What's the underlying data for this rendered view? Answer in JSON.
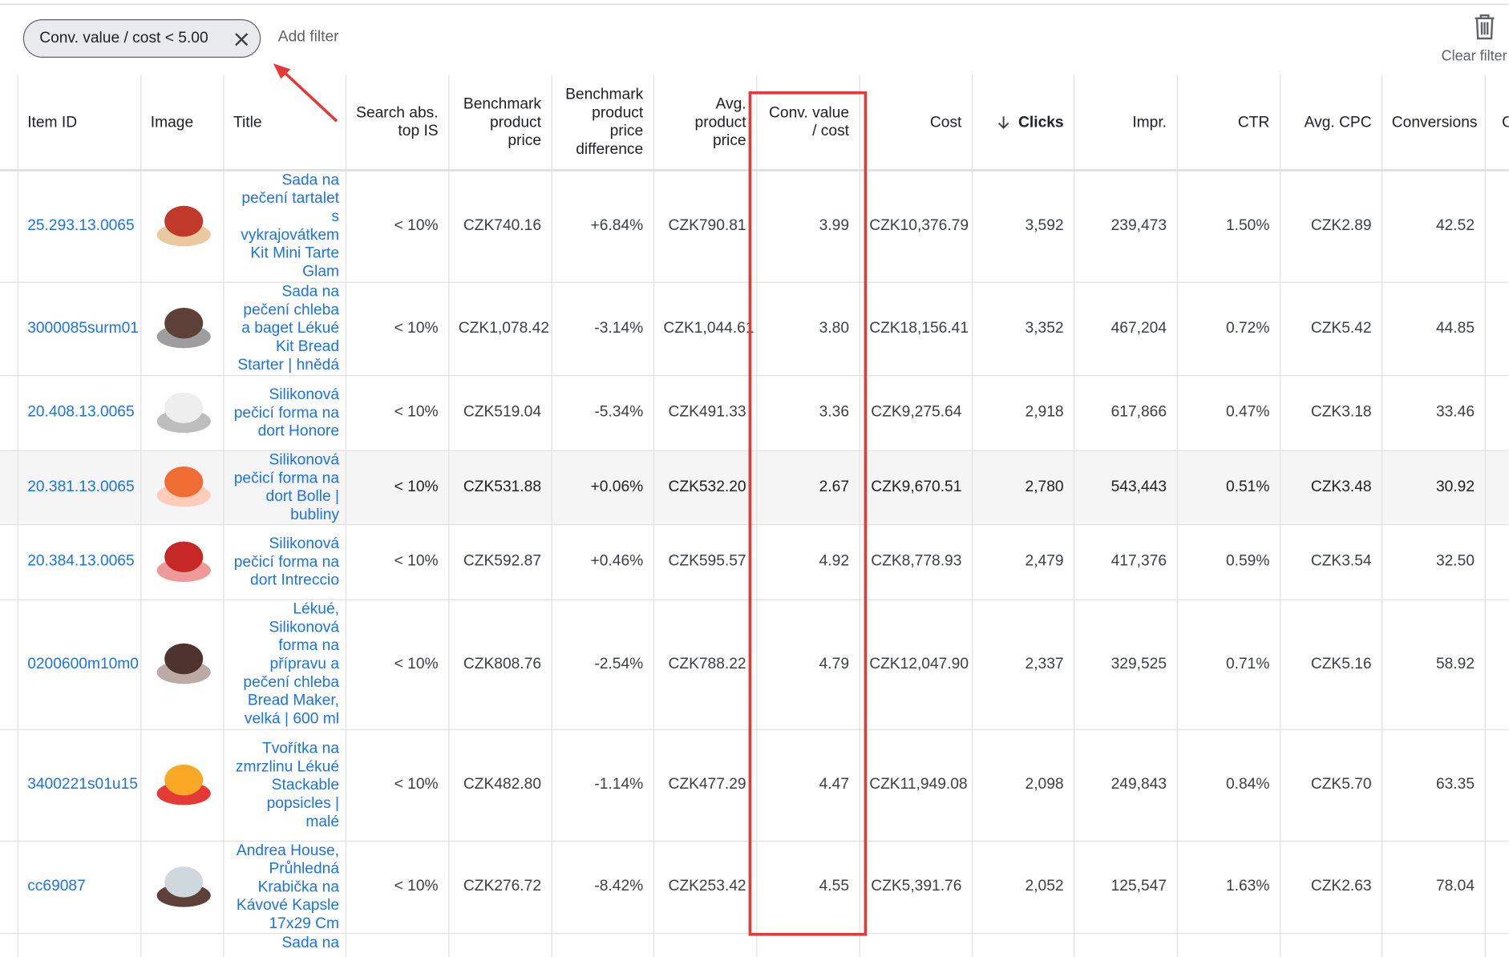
{
  "filter_bar": {
    "chip": "Conv. value / cost < 5.00",
    "add_filter": "Add filter",
    "clear_filter": "Clear filter"
  },
  "table": {
    "headers": [
      "Item ID",
      "Image",
      "Title",
      "Search abs. top IS",
      "Benchmark product price",
      "Benchmark product price difference",
      "Avg. product price",
      "Conv. value / cost",
      "Cost",
      "Clicks",
      "Impr.",
      "CTR",
      "Avg. CPC",
      "Conversions",
      "C"
    ],
    "rows": [
      [
        "25.293.13.0065",
        "Sada na pečení tartalet s vykrajovátkem Kit Mini Tarte Glam",
        "< 10%",
        "CZK740.16",
        "+6.84%",
        "CZK790.81",
        "3.99",
        "CZK10,376.79",
        "3,592",
        "239,473",
        "1.50%",
        "CZK2.89",
        "42.52"
      ],
      [
        "3000085surm01",
        "Sada na pečení chleba a baget Lékué Kit Bread Starter | hnědá",
        "< 10%",
        "CZK1,078.42",
        "-3.14%",
        "CZK1,044.61",
        "3.80",
        "CZK18,156.41",
        "3,352",
        "467,204",
        "0.72%",
        "CZK5.42",
        "44.85"
      ],
      [
        "20.408.13.0065",
        "Silikonová pečicí forma na dort Honore",
        "< 10%",
        "CZK519.04",
        "-5.34%",
        "CZK491.33",
        "3.36",
        "CZK9,275.64",
        "2,918",
        "617,866",
        "0.47%",
        "CZK3.18",
        "33.46"
      ],
      [
        "20.381.13.0065",
        "Silikonová pečicí forma na dort Bolle | bubliny",
        "< 10%",
        "CZK531.88",
        "+0.06%",
        "CZK532.20",
        "2.67",
        "CZK9,670.51",
        "2,780",
        "543,443",
        "0.51%",
        "CZK3.48",
        "30.92"
      ],
      [
        "20.384.13.0065",
        "Silikonová pečicí forma na dort Intreccio",
        "< 10%",
        "CZK592.87",
        "+0.46%",
        "CZK595.57",
        "4.92",
        "CZK8,778.93",
        "2,479",
        "417,376",
        "0.59%",
        "CZK3.54",
        "32.50"
      ],
      [
        "0200600m10m0",
        "Lékué, Silikonová forma na přípravu a pečení chleba Bread Maker, velká | 600 ml",
        "< 10%",
        "CZK808.76",
        "-2.54%",
        "CZK788.22",
        "4.79",
        "CZK12,047.90",
        "2,337",
        "329,525",
        "0.71%",
        "CZK5.16",
        "58.92"
      ],
      [
        "3400221s01u15",
        "Tvořítka na zmrzlinu Lékué Stackable popsicles | malé",
        "< 10%",
        "CZK482.80",
        "-1.14%",
        "CZK477.29",
        "4.47",
        "CZK11,949.08",
        "2,098",
        "249,843",
        "0.84%",
        "CZK5.70",
        "63.35"
      ],
      [
        "cc69087",
        "Andrea House, Průhledná Krabička na Kávové Kapsle 17x29 Cm",
        "< 10%",
        "CZK276.72",
        "-8.42%",
        "CZK253.42",
        "4.55",
        "CZK5,391.76",
        "2,052",
        "125,547",
        "1.63%",
        "CZK2.63",
        "78.04"
      ]
    ],
    "partial_row_title": "Sada na"
  }
}
